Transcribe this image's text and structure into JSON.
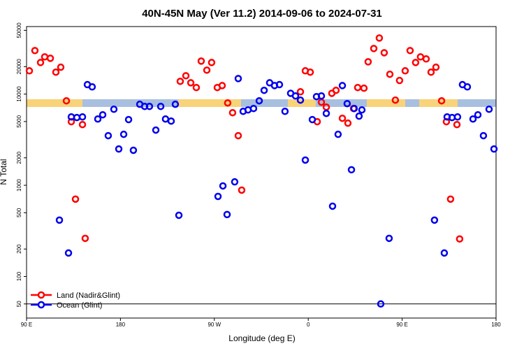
{
  "chart_data": {
    "type": "scatter",
    "title": "40N-45N May (Ver 11.2)   2014-09-06 to 2024-07-31",
    "x_label": "Longitude (deg E)",
    "y_label": "N Total",
    "log_y": true,
    "legend": "bottom-left",
    "hline": 50,
    "xlim": [
      90,
      540
    ],
    "ylim": [
      35,
      55000
    ],
    "xticks": [
      {
        "value": 90,
        "label": "90 E"
      },
      180,
      {
        "value": 270,
        "label": "90 W"
      },
      {
        "value": 360,
        "label": "0"
      },
      {
        "value": 450,
        "label": "90 E"
      },
      {
        "value": 540,
        "label": "180"
      }
    ],
    "yticks": [
      50,
      100,
      200,
      500,
      1000,
      2000,
      5000,
      10000,
      20000,
      50000
    ],
    "series": [
      {
        "name": "Land (Nadir&Glint)",
        "color": "#ff0000",
        "x": [
          92.7,
          98.0,
          103.4,
          107.4,
          112.8,
          118.1,
          122.8,
          128.2,
          132.9,
          136.9,
          143.6,
          146.2,
          237.3,
          242.7,
          247.4,
          252.7,
          257.4,
          262.8,
          267.4,
          272.8,
          277.5,
          282.8,
          287.5,
          292.9,
          296.2,
          352.5,
          357.2,
          361.9,
          368.6,
          372.6,
          377.3,
          382.6,
          386.6,
          392.7,
          398.0,
          403.4,
          407.4,
          413.4,
          417.4,
          422.8,
          428.1,
          432.8,
          438.2,
          443.5,
          447.5,
          452.9,
          457.6,
          462.9,
          467.6,
          473.0,
          477.7,
          482.4,
          487.8,
          492.4,
          496.4,
          502.5,
          505.1
        ],
        "values": [
          18000,
          30000,
          22200,
          25600,
          24700,
          17400,
          19700,
          8440,
          4980,
          705,
          4630,
          262,
          13800,
          15900,
          13300,
          11800,
          23000,
          18300,
          22200,
          11800,
          12400,
          8000,
          6250,
          3500,
          885,
          10600,
          18000,
          17400,
          4980,
          8150,
          7200,
          10200,
          11000,
          5430,
          4800,
          6950,
          11800,
          11600,
          22600,
          31600,
          41200,
          28400,
          16500,
          8590,
          14100,
          18000,
          30000,
          22200,
          25600,
          24300,
          17400,
          19700,
          8440,
          4980,
          705,
          4630,
          258
        ]
      },
      {
        "name": "Ocean (Glint)",
        "color": "#0000ee",
        "x": [
          121.5,
          130.2,
          132.9,
          138.2,
          143.6,
          148.3,
          152.9,
          158.3,
          163.0,
          168.3,
          173.7,
          178.4,
          183.1,
          187.8,
          192.4,
          198.5,
          203.2,
          207.8,
          213.9,
          218.6,
          223.2,
          228.6,
          232.6,
          236.0,
          273.5,
          278.2,
          282.2,
          289.5,
          292.9,
          297.6,
          302.3,
          307.6,
          313.0,
          317.7,
          323.0,
          327.7,
          332.4,
          337.7,
          343.1,
          347.8,
          352.5,
          357.2,
          363.9,
          367.9,
          372.6,
          377.3,
          383.3,
          388.6,
          392.7,
          397.3,
          401.4,
          404.0,
          408.7,
          411.4,
          429.5,
          437.5,
          481.0,
          490.4,
          493.1,
          497.8,
          503.1,
          507.8,
          512.5,
          517.9,
          522.6,
          527.9,
          533.3,
          538.0
        ],
        "values": [
          415,
          181,
          5620,
          5530,
          5620,
          12700,
          12000,
          5330,
          5930,
          3500,
          6820,
          2500,
          3620,
          5250,
          2420,
          7730,
          7330,
          7330,
          4030,
          7330,
          5330,
          5060,
          7730,
          469,
          755,
          984,
          478,
          1090,
          14800,
          6470,
          6710,
          6950,
          8440,
          11000,
          13300,
          12400,
          12700,
          6470,
          10200,
          9550,
          8590,
          1890,
          5250,
          9380,
          9550,
          6140,
          590,
          3620,
          12400,
          7860,
          1480,
          6950,
          5730,
          6710,
          50,
          262,
          415,
          181,
          5620,
          5530,
          5620,
          12700,
          12000,
          5330,
          5930,
          3500,
          6820,
          2500
        ]
      }
    ]
  }
}
